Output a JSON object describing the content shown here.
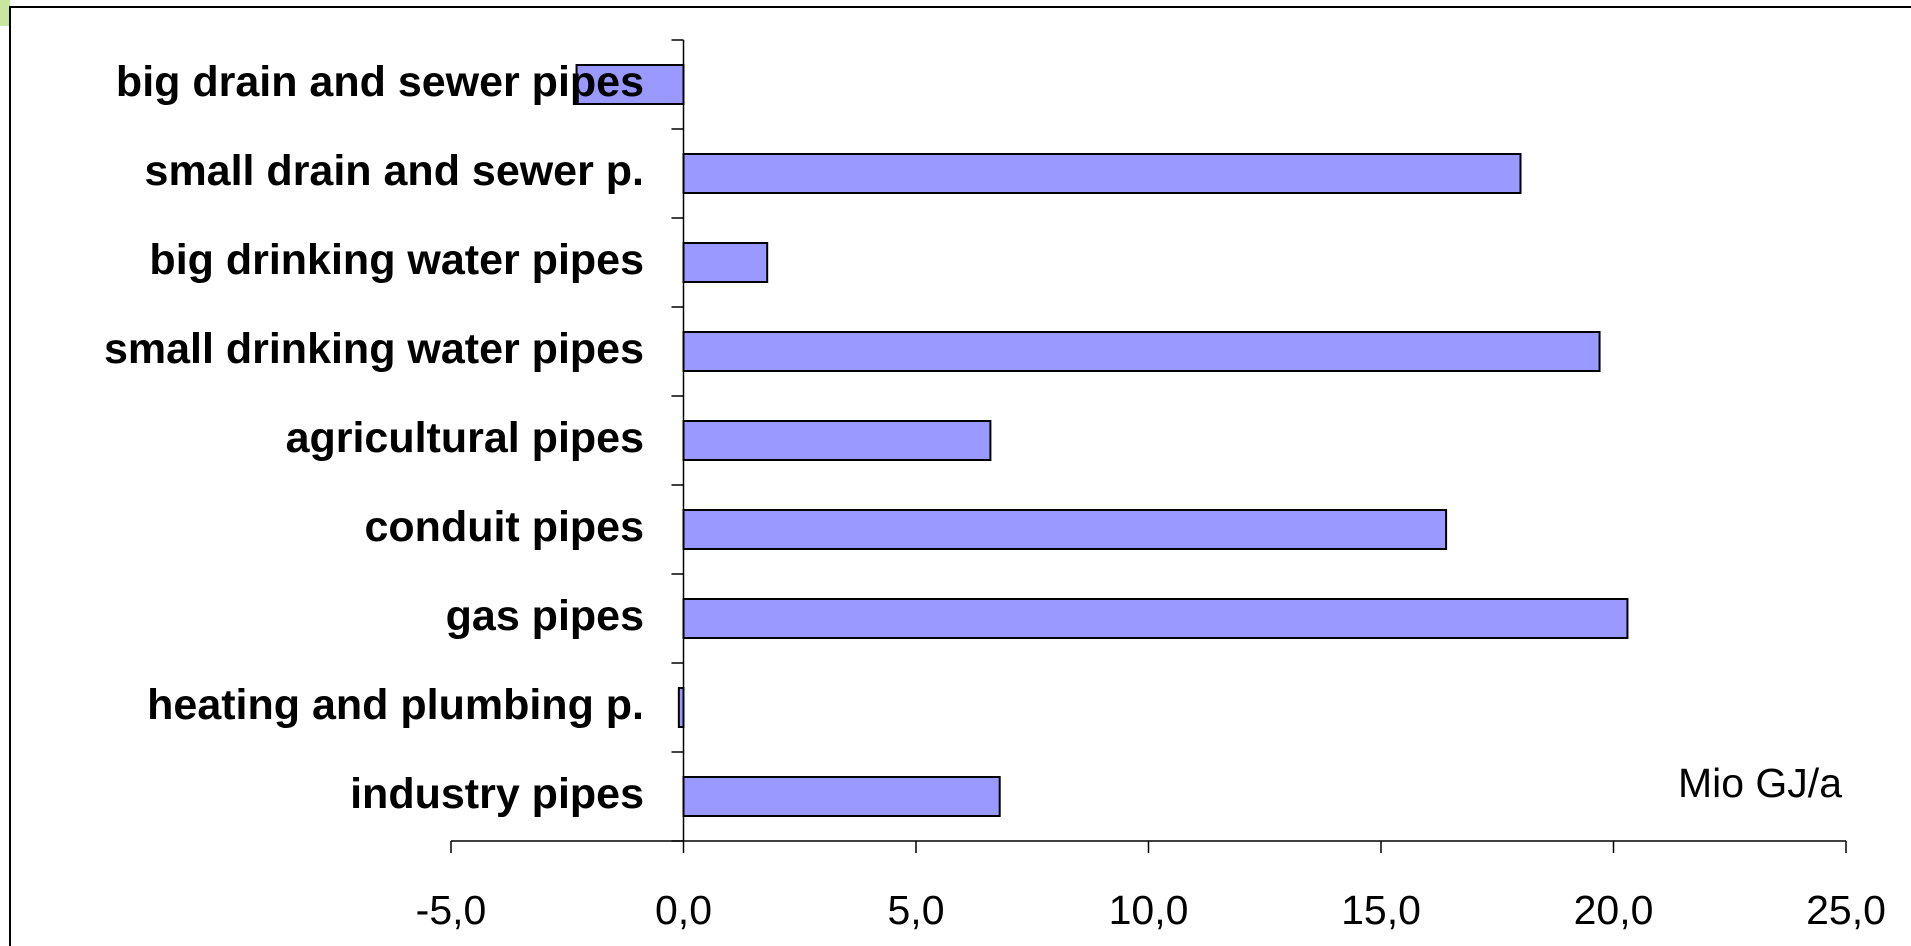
{
  "chart_data": {
    "type": "bar",
    "orientation": "horizontal",
    "categories": [
      "big drain and sewer pipes",
      "small drain and sewer p.",
      "big drinking water pipes",
      "small drinking water pipes",
      "agricultural pipes",
      "conduit pipes",
      "gas pipes",
      "heating and plumbing p.",
      "industry pipes"
    ],
    "values": [
      -2.3,
      18.0,
      1.8,
      19.7,
      6.6,
      16.4,
      20.3,
      -0.1,
      6.8
    ],
    "color": "#9999ff",
    "xlim": [
      -5,
      25
    ],
    "xticks": [
      {
        "value": -5,
        "label": "-5,0"
      },
      {
        "value": 0,
        "label": "0,0"
      },
      {
        "value": 5,
        "label": "5,0"
      },
      {
        "value": 10,
        "label": "10,0"
      },
      {
        "value": 15,
        "label": "15,0"
      },
      {
        "value": 20,
        "label": "20,0"
      },
      {
        "value": 25,
        "label": "25,0"
      }
    ],
    "annotation": "Mio GJ/a",
    "grid": false
  }
}
